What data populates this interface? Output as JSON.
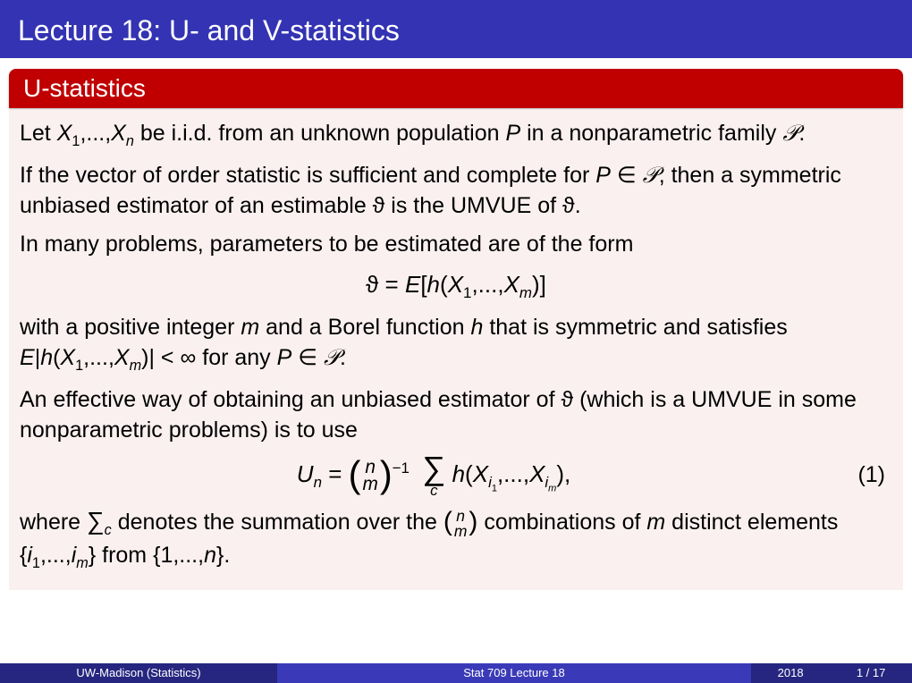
{
  "title": "Lecture 18: U- and V-statistics",
  "block": {
    "header": "U-statistics"
  },
  "p1_a": "Let ",
  "p1_b": " be i.i.d. from an unknown population ",
  "p1_c": " in a nonparametric family ",
  "p2_a": "If the vector of order statistic is sufficient and complete for ",
  "p2_b": ", then a symmetric unbiased estimator of an estimable ",
  "p2_c": " is the UMVUE of ",
  "p3": "In many problems, parameters to be estimated are of the form",
  "eq1_a": "ϑ = ",
  "eq1_b": "E",
  "eq1_c": "[",
  "eq1_d": "h",
  "eq1_e": "(",
  "eq1_f": ")]",
  "p4_a": "with a positive integer ",
  "p4_b": " and a Borel function ",
  "p4_c": " that is symmetric and satisfies ",
  "p4_d": " for any ",
  "p5_a": "An effective way of obtaining an unbiased estimator of ",
  "p5_b": " (which is a UMVUE in some nonparametric problems) is to use",
  "eq2_un": "U",
  "eq2_n": "n",
  "eq2_eq": " = ",
  "eq2_binom_top": "n",
  "eq2_binom_bot": "m",
  "eq2_exp": "−1",
  "eq2_h": "h",
  "eq2_lp": "(",
  "eq2_comma": ",...,",
  "eq2_rp": "),",
  "eq2num": "(1)",
  "p6_a": "where ",
  "p6_b": " denotes the summation over the ",
  "p6_c": " combinations of ",
  "p6_d": " distinct elements ",
  "p6_e": " from ",
  "vars": {
    "X": "X",
    "P": "P",
    "scriptP": "𝒫",
    "theta": "ϑ",
    "m": "m",
    "h": "h",
    "E": "E",
    "n": "n",
    "i": "i",
    "one": "1",
    "c": "c",
    "inf": "∞",
    "lt": "<",
    "in": "∈",
    "dots": ",...,",
    "period": ".",
    "bar": "|"
  },
  "footer": {
    "left": "UW-Madison  (Statistics)",
    "mid": "Stat 709 Lecture 18",
    "year": "2018",
    "page": "1 / 17"
  },
  "colors": {
    "title_bg": "#3333b3",
    "header_bg": "#c00000",
    "body_bg": "#faf0f0",
    "footer_dark": "#262680",
    "footer_light": "#3a3ab8"
  }
}
